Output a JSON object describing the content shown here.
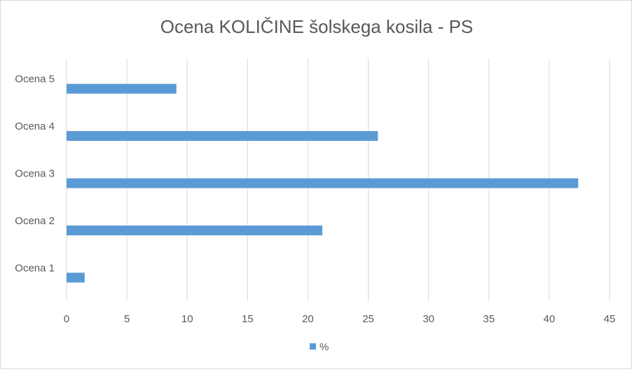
{
  "chart_data": {
    "type": "bar",
    "orientation": "horizontal",
    "title": "Ocena KOLIČINE šolskega kosila - PS",
    "categories": [
      "Ocena 1",
      "Ocena 2",
      "Ocena 3",
      "Ocena 4",
      "Ocena 5"
    ],
    "series": [
      {
        "name": "%",
        "values": [
          1.5,
          21.2,
          42.4,
          25.8,
          9.1
        ]
      }
    ],
    "xlabel": "",
    "ylabel": "",
    "xlim": [
      0,
      45
    ],
    "ticks": [
      0,
      5,
      10,
      15,
      20,
      25,
      30,
      35,
      40,
      45
    ],
    "grid": "vertical",
    "legend_position": "bottom",
    "bar_color": "#5b9bd5",
    "grid_color": "#d9d9d9",
    "text_color": "#595959"
  }
}
